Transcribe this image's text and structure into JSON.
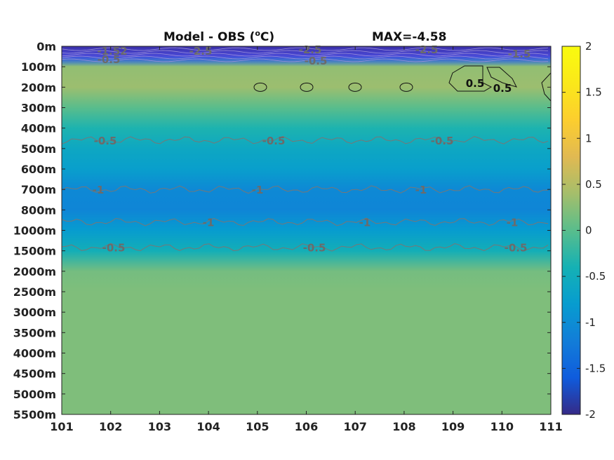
{
  "chart_data": {
    "type": "heatmap",
    "title": "Model - OBS (°C)",
    "title_main": "Model - OBS (",
    "title_degree": "o",
    "title_unit": "C)",
    "max_label": "MAX=-4.58",
    "x": {
      "range": [
        101,
        111
      ],
      "ticks": [
        101,
        102,
        103,
        104,
        105,
        106,
        107,
        108,
        109,
        110,
        111
      ],
      "tick_labels": [
        "101",
        "102",
        "103",
        "104",
        "105",
        "106",
        "107",
        "108",
        "109",
        "110",
        "111"
      ]
    },
    "y": {
      "reversed": true,
      "tick_labels": [
        "0m",
        "100m",
        "200m",
        "300m",
        "400m",
        "500m",
        "600m",
        "700m",
        "800m",
        "1000m",
        "1500m",
        "2000m",
        "2500m",
        "3000m",
        "3500m",
        "4000m",
        "4500m",
        "5000m",
        "5500m"
      ]
    },
    "colorbar": {
      "range": [
        -2,
        2
      ],
      "ticks": [
        -2,
        -1.5,
        -1,
        -0.5,
        0,
        0.5,
        1,
        1.5,
        2
      ],
      "tick_labels": [
        "-2",
        "-1.5",
        "-1",
        "-0.5",
        "0",
        "0.5",
        "1",
        "1.5",
        "2"
      ],
      "colormap": "parula"
    },
    "depth_profile": {
      "depths": [
        "0m",
        "50m",
        "100m",
        "200m",
        "300m",
        "400m",
        "500m",
        "600m",
        "700m",
        "800m",
        "1000m",
        "1500m",
        "2000m",
        "2500m",
        "5500m"
      ],
      "values": [
        -2.2,
        -1.5,
        0.3,
        0.35,
        0.0,
        -0.35,
        -0.6,
        -0.75,
        -1.05,
        -1.1,
        -0.8,
        -0.45,
        0.15,
        0.2,
        0.2
      ]
    },
    "contours": [
      {
        "level": -0.5,
        "labels": [
          "-0.5",
          "-0.5",
          "-0.5"
        ],
        "near_depth": "500m"
      },
      {
        "level": -1,
        "labels": [
          "-1",
          "-1",
          "-1"
        ],
        "near_depth": "700m"
      },
      {
        "level": -1,
        "labels": [
          "-1",
          "-1",
          "-1"
        ],
        "near_depth": "1000m"
      },
      {
        "level": -0.5,
        "labels": [
          "-0.5",
          "-0.5",
          "-0.5"
        ],
        "near_depth": "1500m"
      },
      {
        "level": 0.5,
        "labels": [
          "0.5",
          "0.5"
        ],
        "near_depth": "200m"
      }
    ],
    "surface_labels": [
      "-1.52",
      "-0.5",
      "-2.5",
      "-2.5",
      "-0.5",
      "-2.5",
      "-1.5"
    ],
    "grid": false,
    "legend": "colorbar-right"
  }
}
